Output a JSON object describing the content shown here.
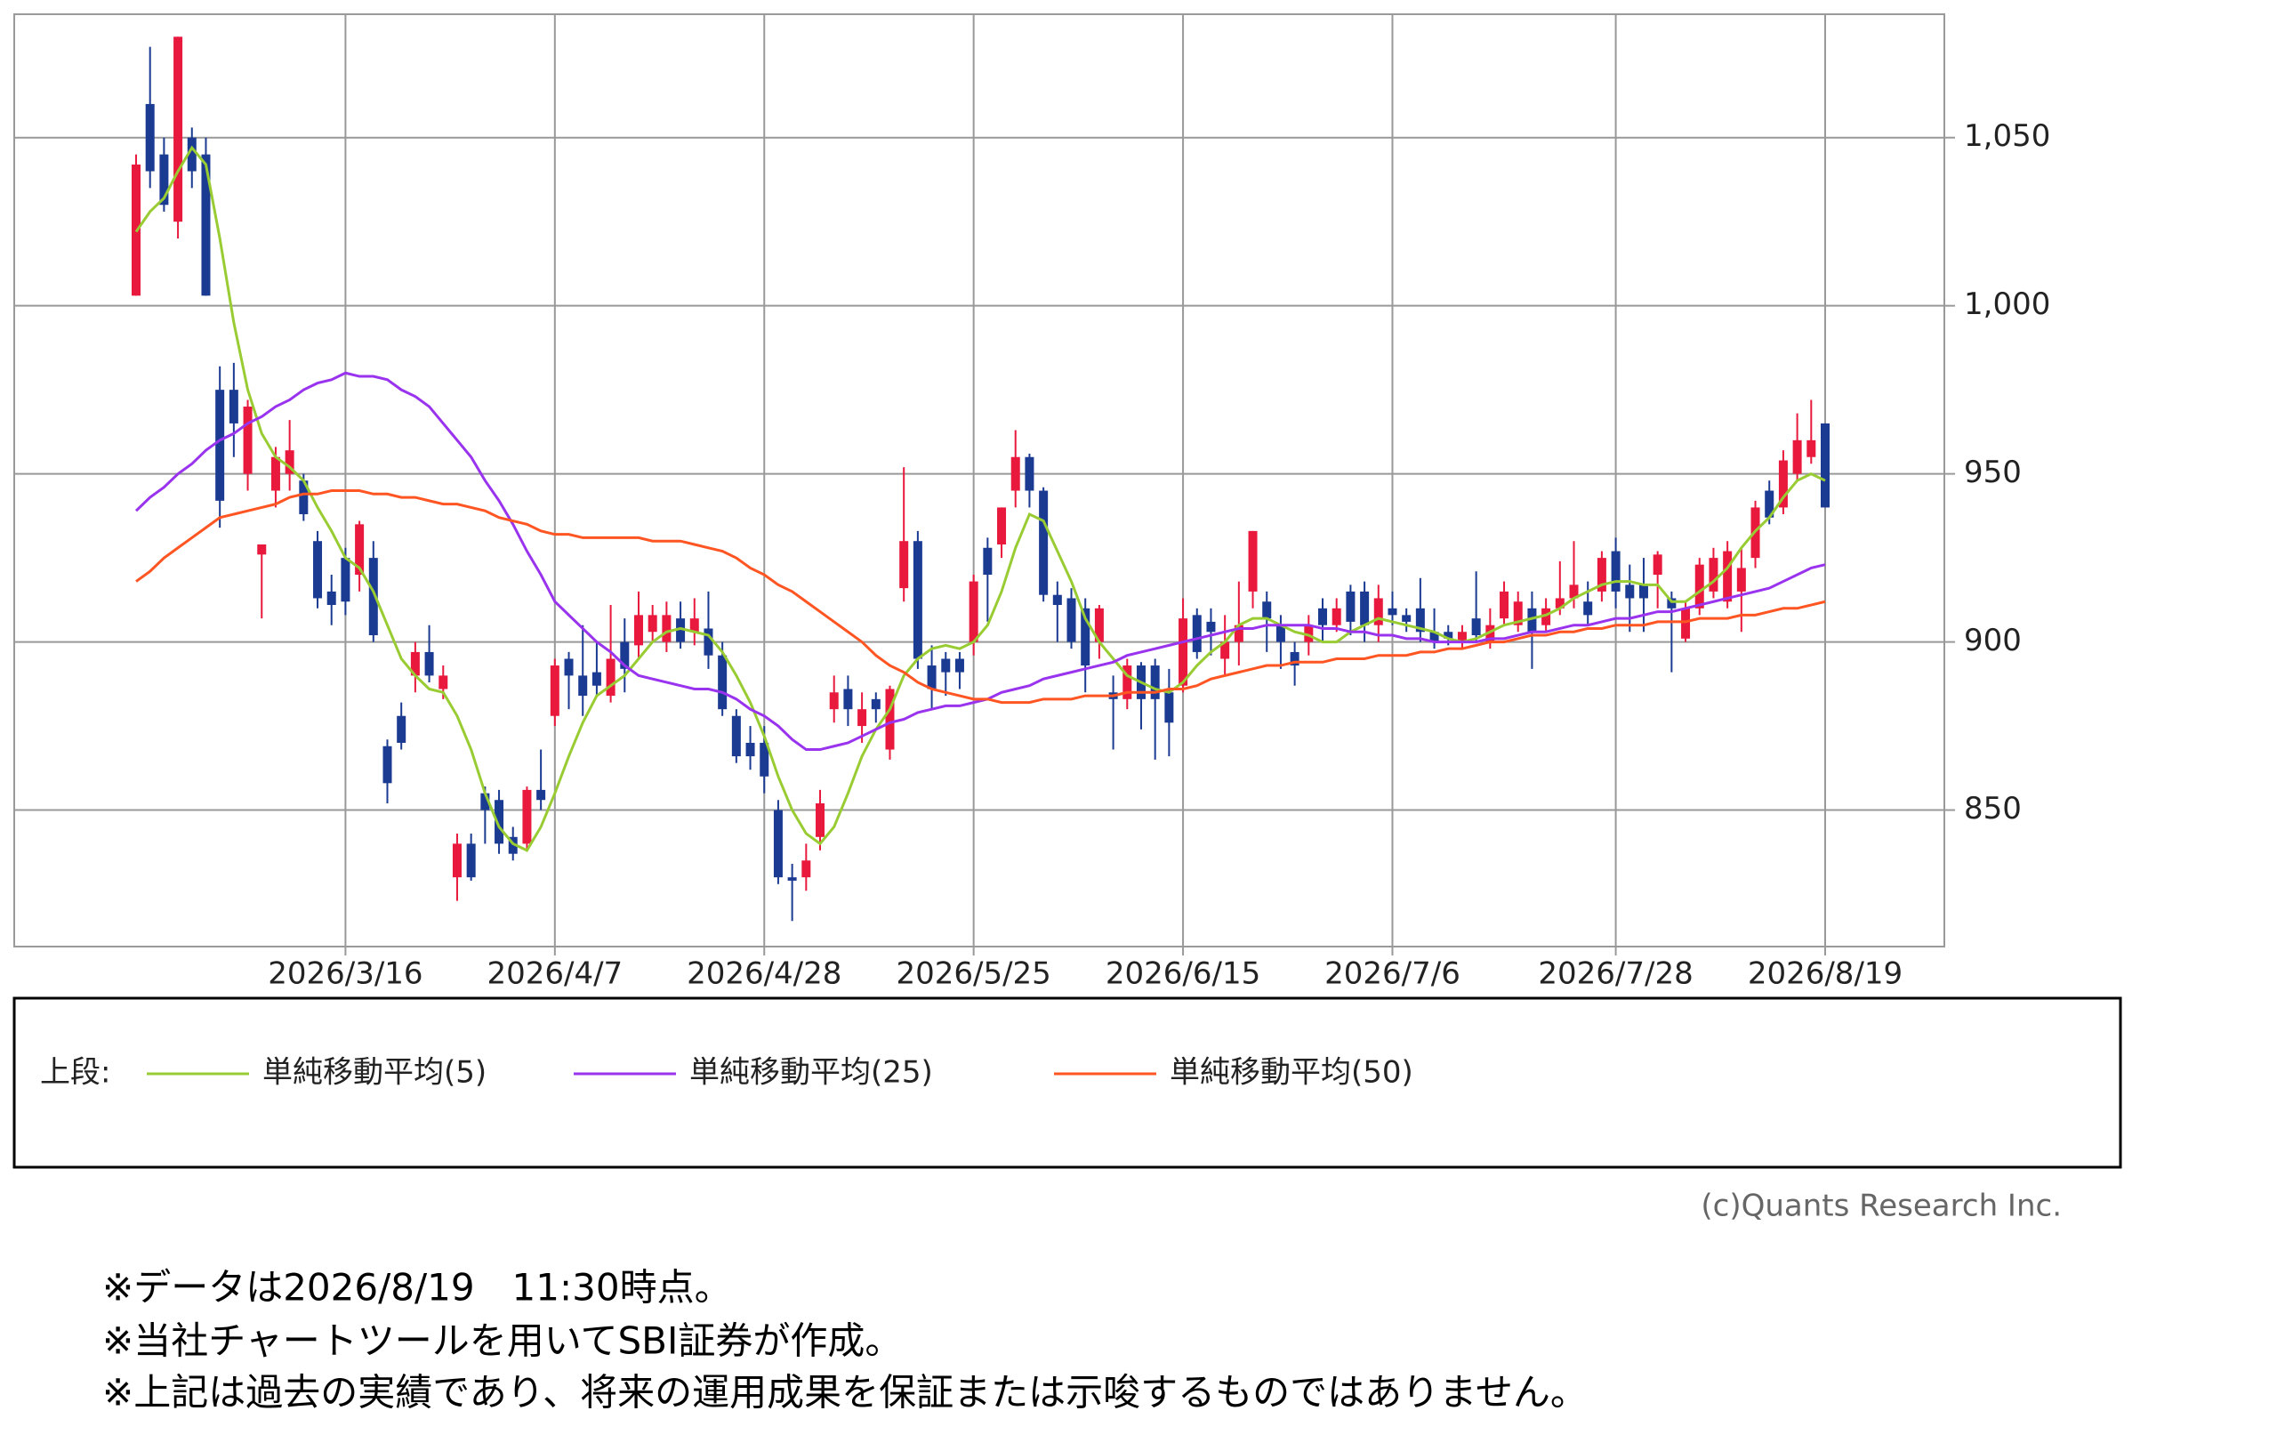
{
  "chart_data": {
    "type": "candlestick",
    "categories": [
      null,
      null,
      null,
      null,
      null,
      null,
      null,
      null,
      null,
      null,
      null,
      null,
      null,
      null,
      null,
      "2026/3/16",
      null,
      null,
      null,
      null,
      null,
      null,
      null,
      null,
      null,
      null,
      null,
      null,
      null,
      null,
      "2026/4/7",
      null,
      null,
      null,
      null,
      null,
      null,
      null,
      null,
      null,
      null,
      null,
      null,
      null,
      null,
      "2026/4/28",
      null,
      null,
      null,
      null,
      null,
      null,
      null,
      null,
      null,
      null,
      null,
      null,
      null,
      null,
      "2026/5/25",
      null,
      null,
      null,
      null,
      null,
      null,
      null,
      null,
      null,
      null,
      null,
      null,
      null,
      null,
      "2026/6/15",
      null,
      null,
      null,
      null,
      null,
      null,
      null,
      null,
      null,
      null,
      null,
      null,
      null,
      null,
      "2026/7/6",
      null,
      null,
      null,
      null,
      null,
      null,
      null,
      null,
      null,
      null,
      null,
      null,
      null,
      null,
      null,
      "2026/7/28",
      null,
      null,
      null,
      null,
      null,
      null,
      null,
      null,
      null,
      null,
      null,
      null,
      null,
      null,
      "2026/8/19"
    ],
    "open": [
      1003,
      1060,
      1045,
      1025,
      1050,
      1045,
      975,
      975,
      950,
      926,
      945,
      950,
      948,
      930,
      915,
      925,
      920,
      925,
      869,
      878,
      890,
      897,
      886,
      830,
      840,
      855,
      853,
      842,
      840,
      856,
      878,
      895,
      890,
      891,
      884,
      900,
      899,
      903,
      900,
      907,
      903,
      904,
      896,
      878,
      870,
      870,
      850,
      830,
      830,
      842,
      880,
      886,
      875,
      883,
      868,
      916,
      930,
      893,
      895,
      895,
      900,
      928,
      929,
      945,
      955,
      945,
      914,
      913,
      910,
      900,
      885,
      883,
      893,
      893,
      885,
      887,
      908,
      906,
      895,
      900,
      915,
      912,
      905,
      897,
      900,
      910,
      905,
      915,
      915,
      905,
      910,
      908,
      910,
      903,
      903,
      900,
      907,
      900,
      907,
      905,
      910,
      905,
      910,
      913,
      912,
      915,
      927,
      917,
      917,
      920,
      913,
      901,
      910,
      915,
      912,
      915,
      925,
      945,
      940,
      950,
      955,
      965
    ],
    "high": [
      1045,
      1077,
      1050,
      1080,
      1053,
      1050,
      982,
      983,
      972,
      929,
      958,
      966,
      950,
      933,
      920,
      928,
      936,
      930,
      871,
      882,
      900,
      905,
      893,
      843,
      843,
      857,
      856,
      845,
      857,
      868,
      895,
      897,
      905,
      900,
      911,
      907,
      915,
      911,
      912,
      912,
      913,
      915,
      900,
      880,
      875,
      875,
      853,
      834,
      840,
      856,
      890,
      890,
      885,
      885,
      887,
      952,
      933,
      899,
      897,
      897,
      920,
      931,
      940,
      963,
      956,
      946,
      918,
      916,
      913,
      911,
      890,
      895,
      894,
      895,
      892,
      913,
      910,
      910,
      908,
      918,
      933,
      915,
      908,
      900,
      908,
      913,
      913,
      917,
      918,
      917,
      915,
      910,
      919,
      910,
      905,
      905,
      921,
      910,
      918,
      915,
      915,
      913,
      924,
      930,
      918,
      927,
      931,
      923,
      925,
      927,
      915,
      912,
      925,
      928,
      930,
      928,
      942,
      948,
      957,
      968,
      972,
      965
    ],
    "low": [
      1003,
      1035,
      1028,
      1020,
      1035,
      1003,
      934,
      955,
      945,
      907,
      940,
      945,
      936,
      910,
      905,
      908,
      915,
      900,
      852,
      868,
      885,
      888,
      883,
      823,
      829,
      840,
      837,
      835,
      838,
      850,
      875,
      880,
      878,
      884,
      882,
      885,
      895,
      900,
      897,
      898,
      899,
      892,
      878,
      864,
      862,
      855,
      828,
      817,
      826,
      838,
      876,
      875,
      870,
      876,
      865,
      912,
      892,
      880,
      884,
      886,
      896,
      906,
      925,
      940,
      940,
      912,
      900,
      898,
      885,
      895,
      868,
      880,
      874,
      865,
      866,
      885,
      895,
      896,
      890,
      893,
      910,
      897,
      892,
      887,
      896,
      900,
      903,
      902,
      900,
      900,
      905,
      903,
      900,
      898,
      899,
      898,
      900,
      898,
      905,
      903,
      892,
      903,
      908,
      910,
      905,
      912,
      910,
      903,
      903,
      910,
      891,
      900,
      908,
      913,
      910,
      903,
      922,
      935,
      938,
      948,
      953,
      940
    ],
    "close": [
      1042,
      1040,
      1030,
      1080,
      1040,
      1003,
      942,
      965,
      970,
      929,
      955,
      957,
      938,
      913,
      911,
      912,
      935,
      902,
      858,
      870,
      897,
      890,
      890,
      840,
      830,
      850,
      840,
      837,
      856,
      853,
      893,
      890,
      884,
      887,
      895,
      892,
      908,
      908,
      908,
      900,
      907,
      896,
      880,
      866,
      866,
      860,
      830,
      829,
      835,
      852,
      885,
      880,
      880,
      880,
      886,
      930,
      895,
      886,
      891,
      891,
      918,
      920,
      940,
      955,
      945,
      914,
      911,
      900,
      893,
      910,
      883,
      893,
      883,
      883,
      876,
      907,
      897,
      903,
      900,
      905,
      933,
      907,
      900,
      893,
      905,
      905,
      910,
      906,
      905,
      913,
      908,
      906,
      903,
      900,
      901,
      903,
      902,
      905,
      915,
      912,
      903,
      910,
      913,
      917,
      908,
      925,
      915,
      913,
      913,
      926,
      910,
      910,
      923,
      925,
      927,
      922,
      940,
      937,
      954,
      960,
      960,
      940
    ],
    "up_color": "#e8193c",
    "down_color": "#1b3a92",
    "series": [
      {
        "name": "単純移動平均(5)",
        "color": "#99cc33",
        "values": [
          1022,
          1028,
          1032,
          1040,
          1047,
          1042,
          1020,
          995,
          975,
          962,
          955,
          952,
          948,
          940,
          933,
          925,
          922,
          915,
          905,
          895,
          890,
          886,
          885,
          878,
          868,
          855,
          845,
          840,
          838,
          845,
          855,
          866,
          876,
          884,
          887,
          890,
          895,
          900,
          903,
          904,
          903,
          902,
          897,
          890,
          882,
          872,
          860,
          850,
          843,
          840,
          845,
          855,
          866,
          874,
          880,
          890,
          895,
          898,
          899,
          898,
          900,
          905,
          915,
          928,
          938,
          936,
          927,
          918,
          907,
          900,
          895,
          890,
          888,
          886,
          885,
          888,
          893,
          897,
          900,
          905,
          907,
          907,
          905,
          903,
          902,
          900,
          900,
          903,
          905,
          907,
          906,
          905,
          904,
          903,
          901,
          900,
          901,
          903,
          905,
          906,
          907,
          908,
          910,
          913,
          915,
          917,
          918,
          918,
          917,
          917,
          912,
          912,
          915,
          918,
          922,
          928,
          933,
          937,
          943,
          948,
          950,
          948
        ]
      },
      {
        "name": "単純移動平均(25)",
        "color": "#9933ee",
        "values": [
          939,
          943,
          946,
          950,
          953,
          957,
          960,
          962,
          965,
          967,
          970,
          972,
          975,
          977,
          978,
          980,
          979,
          979,
          978,
          975,
          973,
          970,
          965,
          960,
          955,
          948,
          942,
          935,
          927,
          920,
          912,
          908,
          904,
          900,
          897,
          893,
          890,
          889,
          888,
          887,
          886,
          886,
          885,
          883,
          880,
          878,
          875,
          871,
          868,
          868,
          869,
          870,
          872,
          874,
          876,
          877,
          879,
          880,
          881,
          881,
          882,
          883,
          885,
          886,
          887,
          889,
          890,
          891,
          892,
          893,
          894,
          896,
          897,
          898,
          899,
          900,
          901,
          902,
          903,
          904,
          904,
          905,
          905,
          905,
          905,
          904,
          904,
          903,
          903,
          902,
          902,
          901,
          901,
          900,
          900,
          900,
          900,
          901,
          901,
          902,
          903,
          903,
          904,
          905,
          905,
          906,
          907,
          907,
          908,
          909,
          909,
          910,
          911,
          912,
          913,
          914,
          915,
          916,
          918,
          920,
          922,
          923
        ]
      },
      {
        "name": "単純移動平均(50)",
        "color": "#ff5522",
        "values": [
          918,
          921,
          925,
          928,
          931,
          934,
          937,
          938,
          939,
          940,
          941,
          943,
          944,
          944,
          945,
          945,
          945,
          944,
          944,
          943,
          943,
          942,
          941,
          941,
          940,
          939,
          937,
          936,
          935,
          933,
          932,
          932,
          931,
          931,
          931,
          931,
          931,
          930,
          930,
          930,
          929,
          928,
          927,
          925,
          922,
          920,
          917,
          915,
          912,
          909,
          906,
          903,
          900,
          896,
          893,
          891,
          888,
          886,
          885,
          884,
          883,
          883,
          882,
          882,
          882,
          883,
          883,
          883,
          884,
          884,
          884,
          885,
          885,
          885,
          886,
          886,
          887,
          889,
          890,
          891,
          892,
          893,
          893,
          894,
          894,
          894,
          895,
          895,
          895,
          896,
          896,
          896,
          897,
          897,
          898,
          898,
          899,
          900,
          900,
          901,
          902,
          902,
          903,
          903,
          904,
          904,
          905,
          905,
          905,
          906,
          906,
          906,
          907,
          907,
          907,
          908,
          908,
          909,
          910,
          910,
          911,
          912
        ]
      }
    ],
    "ylim": [
      809.4,
      1086.7
    ],
    "yticks": [
      {
        "value": 1050,
        "label": "1,050"
      },
      {
        "value": 1000,
        "label": "1,000"
      },
      950,
      900,
      850
    ],
    "grid": true,
    "legend_title": "上段:",
    "credit": "(c)Quants Research Inc."
  },
  "notes": [
    "※データは2026/8/19　11:30時点。",
    "※当社チャートツールを用いてSBI証券が作成。",
    "※上記は過去の実績であり、将来の運用成果を保証または示唆するものではありません。"
  ]
}
